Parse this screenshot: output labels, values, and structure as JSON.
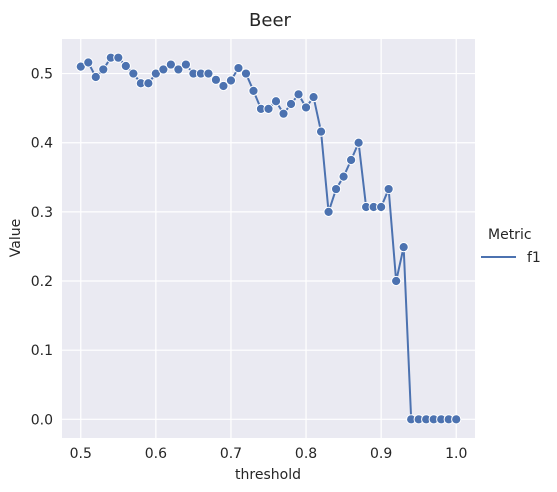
{
  "chart_data": {
    "type": "line",
    "title": "Beer",
    "xlabel": "threshold",
    "ylabel": "Value",
    "xlim": [
      0.475,
      1.025
    ],
    "ylim": [
      -0.027,
      0.55
    ],
    "xticks": [
      0.5,
      0.6,
      0.7,
      0.8,
      0.9,
      1.0
    ],
    "xtick_labels": [
      "0.5",
      "0.6",
      "0.7",
      "0.8",
      "0.9",
      "1.0"
    ],
    "yticks": [
      0.0,
      0.1,
      0.2,
      0.3,
      0.4,
      0.5
    ],
    "ytick_labels": [
      "0.0",
      "0.1",
      "0.2",
      "0.3",
      "0.4",
      "0.5"
    ],
    "grid": true,
    "background": "#eaeaf2",
    "legend": {
      "title": "Metric",
      "placement": "right",
      "entries": [
        "f1"
      ]
    },
    "series": [
      {
        "name": "f1",
        "color": "#4c72b0",
        "marker": "circle",
        "x": [
          0.5,
          0.51,
          0.52,
          0.53,
          0.54,
          0.55,
          0.56,
          0.57,
          0.58,
          0.59,
          0.6,
          0.61,
          0.62,
          0.63,
          0.64,
          0.65,
          0.66,
          0.67,
          0.68,
          0.69,
          0.7,
          0.71,
          0.72,
          0.73,
          0.74,
          0.75,
          0.76,
          0.77,
          0.78,
          0.79,
          0.8,
          0.81,
          0.82,
          0.83,
          0.84,
          0.85,
          0.86,
          0.87,
          0.88,
          0.89,
          0.9,
          0.91,
          0.92,
          0.93,
          0.94,
          0.95,
          0.96,
          0.97,
          0.98,
          0.99,
          1.0
        ],
        "y": [
          0.51,
          0.516,
          0.495,
          0.506,
          0.523,
          0.523,
          0.511,
          0.5,
          0.486,
          0.486,
          0.5,
          0.506,
          0.513,
          0.506,
          0.513,
          0.5,
          0.5,
          0.5,
          0.491,
          0.482,
          0.49,
          0.508,
          0.5,
          0.475,
          0.449,
          0.449,
          0.46,
          0.442,
          0.456,
          0.47,
          0.451,
          0.466,
          0.416,
          0.3,
          0.333,
          0.351,
          0.375,
          0.4,
          0.307,
          0.307,
          0.307,
          0.333,
          0.2,
          0.249,
          0.0,
          0.0,
          0.0,
          0.0,
          0.0,
          0.0,
          0.0
        ]
      }
    ]
  }
}
